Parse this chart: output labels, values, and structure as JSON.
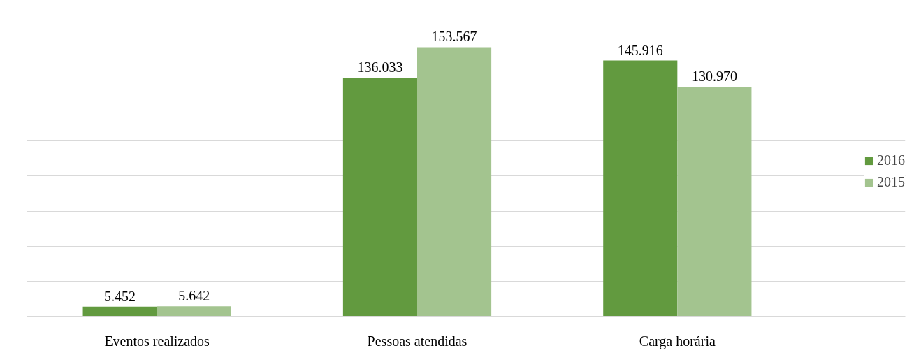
{
  "chart_data": {
    "type": "bar",
    "categories": [
      "Eventos realizados",
      "Pessoas atendidas",
      "Carga horária"
    ],
    "series": [
      {
        "name": "2016",
        "color": "#629a3f",
        "values": [
          5452,
          136033,
          145916
        ],
        "value_labels": [
          "5.452",
          "136.033",
          "145.916"
        ]
      },
      {
        "name": "2015",
        "color": "#a3c48f",
        "values": [
          5642,
          153567,
          130970
        ],
        "value_labels": [
          "5.642",
          "153.567",
          "130.970"
        ]
      }
    ],
    "tick_labels": "x",
    "grid": "y",
    "legend": "right"
  }
}
